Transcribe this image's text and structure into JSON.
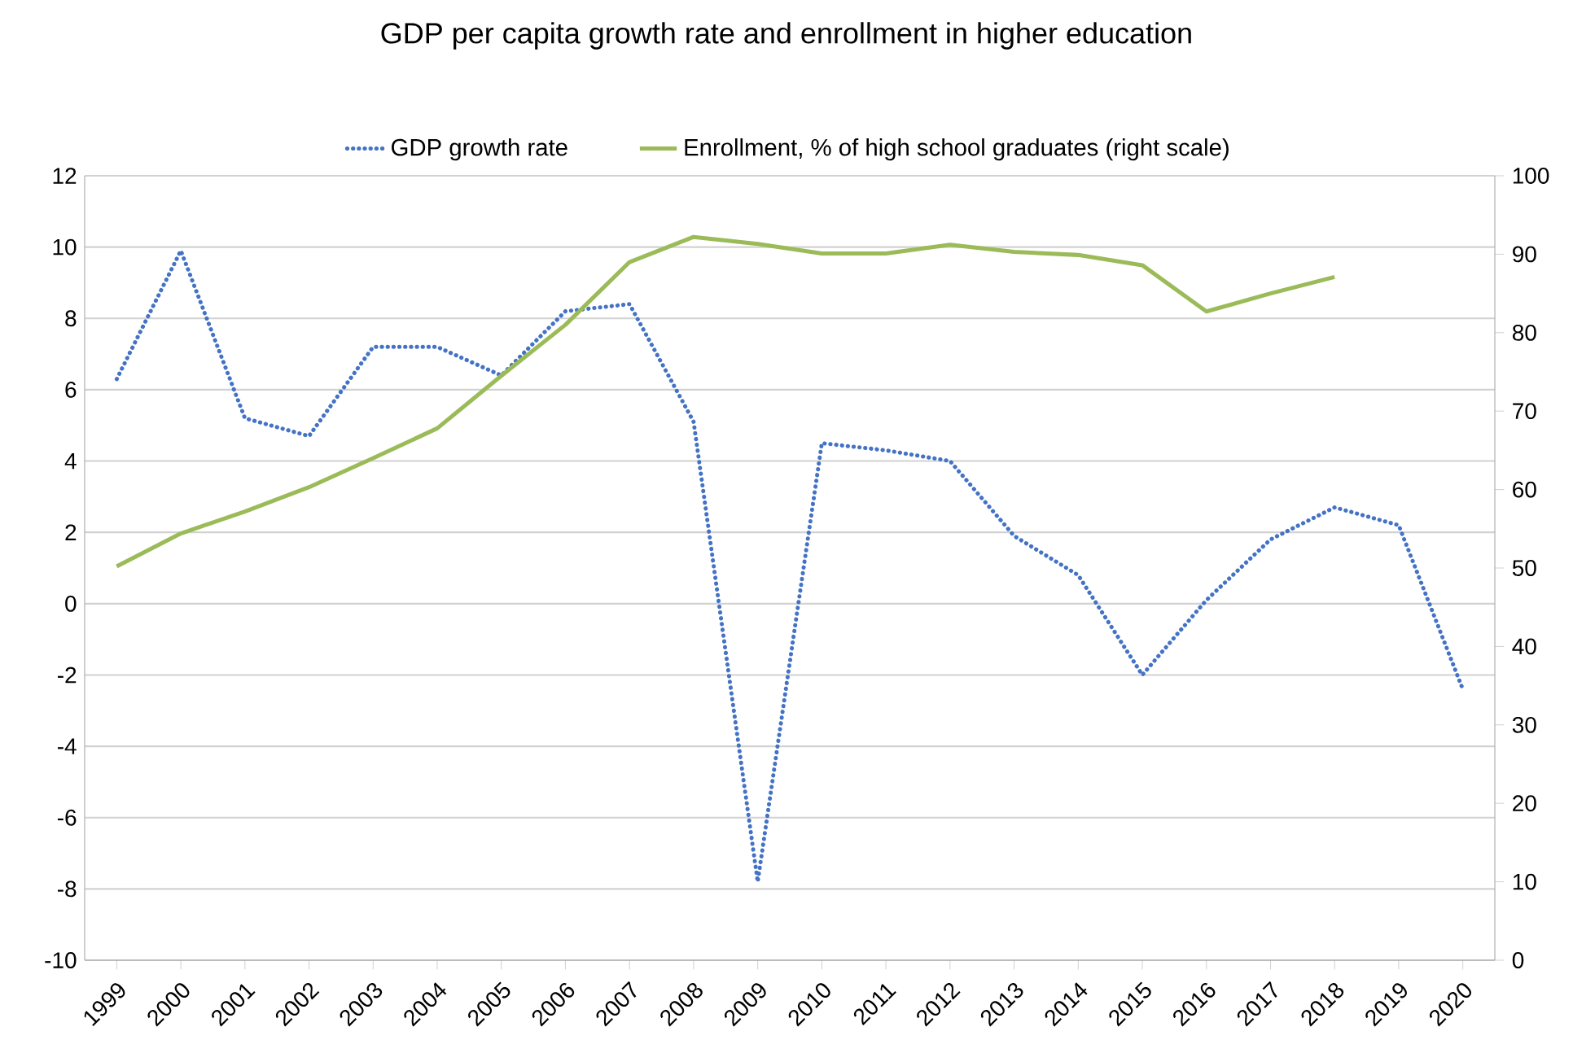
{
  "chart_data": {
    "type": "line",
    "title": "GDP per capita growth rate and enrollment in higher education",
    "categories": [
      "1999",
      "2000",
      "2001",
      "2002",
      "2003",
      "2004",
      "2005",
      "2006",
      "2007",
      "2008",
      "2009",
      "2010",
      "2011",
      "2012",
      "2013",
      "2014",
      "2015",
      "2016",
      "2017",
      "2018",
      "2019",
      "2020"
    ],
    "series": [
      {
        "name": "GDP growth rate",
        "color": "#4472c4",
        "line_style": "dotted",
        "values": [
          6.3,
          9.9,
          5.2,
          4.7,
          7.2,
          7.2,
          6.4,
          8.2,
          8.4,
          5.1,
          -7.8,
          4.5,
          4.3,
          4.0,
          1.9,
          0.8,
          -2.0,
          0.1,
          1.8,
          2.7,
          2.2,
          -2.4
        ]
      },
      {
        "name": "Enrollment, % of high school graduates (right scale)",
        "color": "#9bbb59",
        "line_style": "solid",
        "axis": "y2",
        "values": [
          50.2,
          54.4,
          57.2,
          60.3,
          64,
          67.8,
          74.5,
          81,
          89,
          92.2,
          91.3,
          90.1,
          90.1,
          91.2,
          90.3,
          89.9,
          88.6,
          82.7,
          85,
          87.1,
          null,
          null
        ]
      }
    ],
    "ylim": [
      -10,
      12
    ],
    "yticks": [
      -10,
      -8,
      -6,
      -4,
      -2,
      0,
      2,
      4,
      6,
      8,
      10,
      12
    ],
    "y2lim": [
      0,
      100
    ],
    "y2ticks": [
      0,
      10,
      20,
      30,
      40,
      50,
      60,
      70,
      80,
      90,
      100
    ],
    "grid": "y",
    "legend": "top",
    "marker": "none"
  }
}
